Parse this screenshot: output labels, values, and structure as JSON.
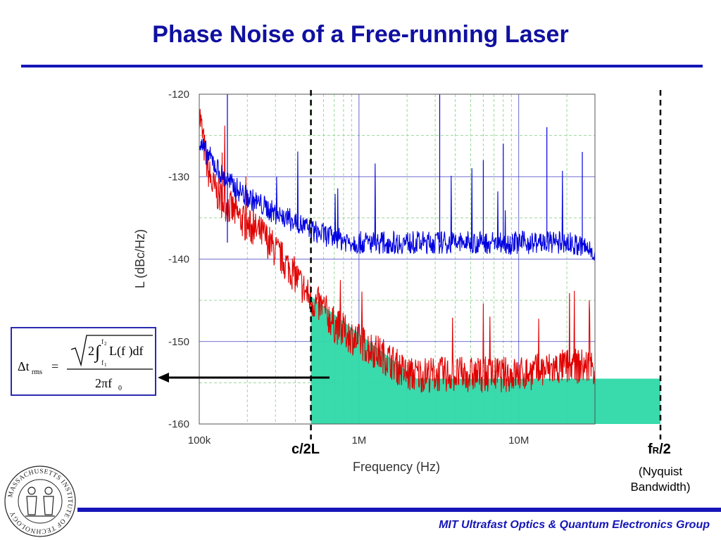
{
  "slide": {
    "title": "Phase Noise of a Free-running Laser",
    "footer": "MIT Ultrafast Optics & Quantum Electronics Group",
    "logo_text": "MASSACHUSETTS INSTITUTE OF TECHNOLOGY"
  },
  "markers": {
    "c2l_label": "c/2L",
    "fr2_label_main": "f",
    "fr2_label_sub": "R",
    "fr2_label_tail": "/2",
    "nyquist_line1": "(Nyquist",
    "nyquist_line2": "Bandwidth)"
  },
  "formula": {
    "text": "Δt_rms = sqrt(2 ∫_{f1}^{f2} L(f) df) / (2π f0)"
  },
  "colors": {
    "title": "#1010a0",
    "series_red": "#e00000",
    "series_blue": "#0000e0",
    "shaded_region": "#2ed8a8",
    "grid": "#4040c0"
  },
  "chart_data": {
    "type": "line",
    "xlabel": "Frequency (Hz)",
    "ylabel": "L (dBc/Hz)",
    "xscale": "log",
    "xlim": [
      100000,
      30000000
    ],
    "ylim": [
      -160,
      -120
    ],
    "x_tick_labels": [
      "100k",
      "1M",
      "10M"
    ],
    "x_ticks": [
      100000,
      1000000,
      10000000
    ],
    "y_tick_labels": [
      "-120",
      "-130",
      "-140",
      "-150",
      "-160"
    ],
    "y_ticks": [
      -120,
      -130,
      -140,
      -150,
      -160
    ],
    "series": [
      {
        "color": "red",
        "x": [
          100000,
          110000,
          120000,
          140000,
          160000,
          200000,
          250000,
          300000,
          400000,
          500000,
          600000,
          700000,
          1000000,
          1500000,
          2000000,
          3000000,
          5000000,
          10000000,
          20000000,
          30000000
        ],
        "y": [
          -122,
          -128,
          -131,
          -133,
          -134,
          -136,
          -137,
          -139,
          -142,
          -145,
          -146,
          -148,
          -150,
          -152,
          -154,
          -154,
          -154,
          -154,
          -153,
          -153
        ]
      },
      {
        "color": "blue",
        "x": [
          100000,
          110000,
          120000,
          140000,
          160000,
          200000,
          250000,
          300000,
          400000,
          500000,
          600000,
          700000,
          1000000,
          1500000,
          2000000,
          3000000,
          5000000,
          10000000,
          20000000,
          30000000
        ],
        "y": [
          -126,
          -127,
          -128,
          -130,
          -131,
          -132.5,
          -133.5,
          -134.5,
          -135.5,
          -136.5,
          -137,
          -137.5,
          -138,
          -138,
          -138,
          -138,
          -138,
          -138,
          -138,
          -139
        ]
      }
    ],
    "spurs": [
      {
        "x": 150000,
        "y": -120
      },
      {
        "x": 3200000,
        "y": -120
      },
      {
        "x": 6000000,
        "y": -128
      },
      {
        "x": 8000000,
        "y": -126
      },
      {
        "x": 15000000,
        "y": -124
      },
      {
        "x": 25000000,
        "y": -127
      }
    ],
    "markers_hz": {
      "c_over_2L": 500000,
      "fr_over_2": 60000000
    },
    "shaded_region": {
      "ramp_start": {
        "x": 500000,
        "y": -144.5
      },
      "ramp_end": {
        "x": 2300000,
        "y": -154.5
      },
      "floor_y": -154.5,
      "x_end_hz": 60000000,
      "bottom_y": -160
    }
  }
}
